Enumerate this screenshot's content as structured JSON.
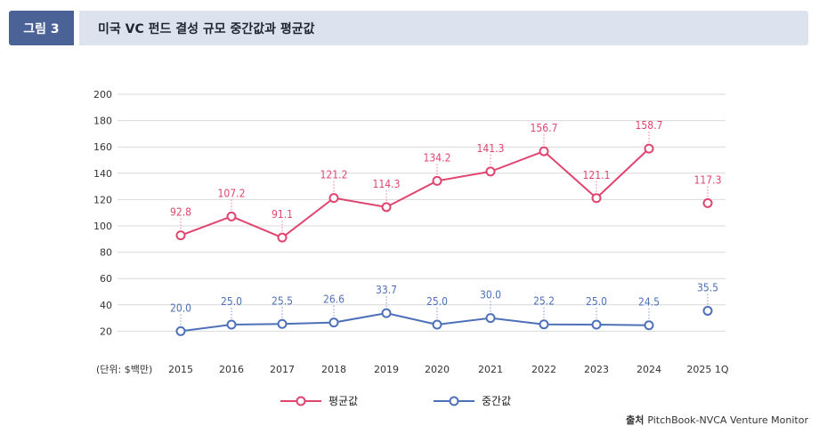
{
  "header": {
    "tag": "그림 3",
    "title": "미국 VC 펀드 결성 규모 중간값과 평균값"
  },
  "source": {
    "label": "출처",
    "text": "PitchBook-NVCA Venture Monitor"
  },
  "colors": {
    "mean": "#e0456f",
    "median": "#4e70b8",
    "grid": "#d9d9d9",
    "axis_text": "#333333"
  },
  "chart_data": {
    "type": "line",
    "unit_label": "(단위: $백만)",
    "categories": [
      "2015",
      "2016",
      "2017",
      "2018",
      "2019",
      "2020",
      "2021",
      "2022",
      "2023",
      "2024",
      "2025 1Q"
    ],
    "ylim": [
      0,
      200
    ],
    "yticks": [
      20,
      40,
      60,
      80,
      100,
      120,
      140,
      160,
      180,
      200
    ],
    "grid": true,
    "legend_position": "bottom",
    "series": [
      {
        "name": "평균값",
        "values": [
          92.8,
          107.2,
          91.1,
          121.2,
          114.3,
          134.2,
          141.3,
          156.7,
          121.1,
          158.7,
          117.3
        ],
        "connected_points": 10
      },
      {
        "name": "중간값",
        "values": [
          20.0,
          25.0,
          25.5,
          26.6,
          33.7,
          25.0,
          30.0,
          25.2,
          25.0,
          24.5,
          35.5
        ],
        "connected_points": 10
      }
    ]
  }
}
